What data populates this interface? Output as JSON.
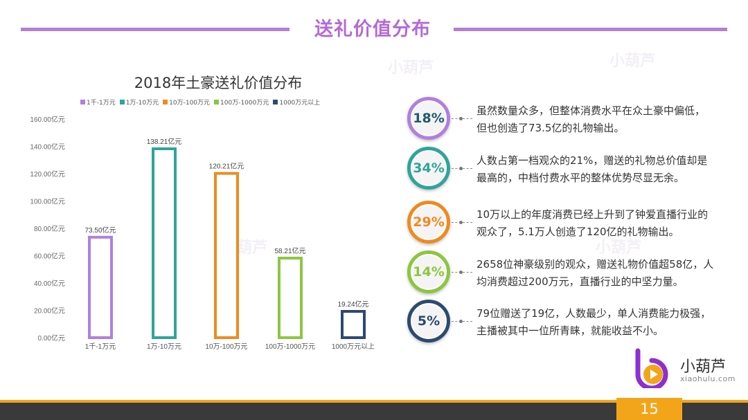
{
  "header": {
    "title": "送礼价值分布"
  },
  "watermark": {
    "text": "小葫芦"
  },
  "chart_data": {
    "type": "bar",
    "title": "2018年土豪送礼价值分布",
    "categories": [
      "1千-1万元",
      "1万-10万元",
      "10万-100万元",
      "100万-1000万元",
      "1000万元以上"
    ],
    "values": [
      73.5,
      138.21,
      120.21,
      58.21,
      19.24
    ],
    "data_labels": [
      "73.50亿元",
      "138.21亿元",
      "120.21亿元",
      "58.21亿元",
      "19.24亿元"
    ],
    "colors": [
      "#b07fe0",
      "#2fa49a",
      "#ef8a1e",
      "#8cc63f",
      "#2c4a6e"
    ],
    "legend": [
      "1千-1万元",
      "1万-10万元",
      "10万-100万元",
      "100万-1000万元",
      "1000万元以上"
    ],
    "legend_position": "top",
    "ylim": [
      0,
      160
    ],
    "yticks": [
      "0.00亿元",
      "20.00亿元",
      "40.00亿元",
      "60.00亿元",
      "80.00亿元",
      "100.00亿元",
      "120.00亿元",
      "140.00亿元",
      "160.00亿元"
    ],
    "ytick_values": [
      0,
      20,
      40,
      60,
      80,
      100,
      120,
      140,
      160
    ],
    "grid": false
  },
  "insights": [
    {
      "percent": "18%",
      "color": "#b07fe0",
      "text_color": "#1f5a6e",
      "line1": "虽然数量众多，但整体消费水平在众土豪中偏低，",
      "line2": "但也创造了73.5亿的礼物输出。"
    },
    {
      "percent": "34%",
      "color": "#2fa49a",
      "text_color": "#2fa49a",
      "line1": "人数占第一档观众的21%，赠送的礼物总价值却是",
      "line2": "最高的，中档付费水平的整体优势尽显无余。"
    },
    {
      "percent": "29%",
      "color": "#ef8a1e",
      "text_color": "#ef8a1e",
      "line1": "10万以上的年度消费已经上升到了钟爱直播行业的",
      "line2": "观众了，5.1万人创造了120亿的礼物输出。"
    },
    {
      "percent": "14%",
      "color": "#8cc63f",
      "text_color": "#8cc63f",
      "line1": "2658位神豪级别的观众，赠送礼物价值超58亿，人",
      "line2": "均消费超过200万元，直播行业的中坚力量。"
    },
    {
      "percent": "5%",
      "color": "#2c4a6e",
      "text_color": "#2c4a6e",
      "line1": "79位赠送了19亿，人数最少，单人消费能力极强，",
      "line2": "主播被其中一位所青睐，就能收益不小。"
    }
  ],
  "brand": {
    "name": "小葫芦",
    "sub": "xiaohulu.com"
  },
  "footer": {
    "page_number": "15"
  }
}
